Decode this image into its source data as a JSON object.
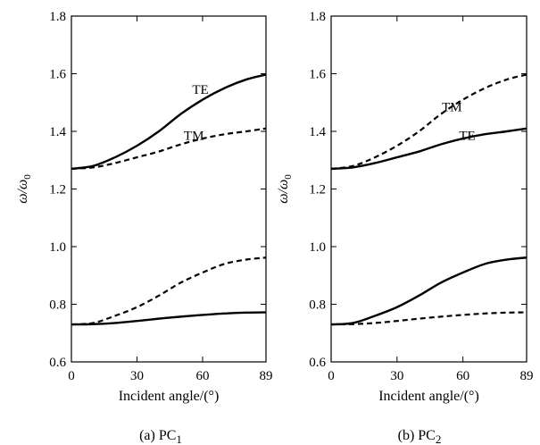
{
  "chart_data": [
    {
      "type": "line",
      "panel_caption": "(a) PC",
      "panel_caption_sub": "1",
      "xlabel": "Incident angle/(°)",
      "ylabel_main": "ω/ω",
      "ylabel_sub": "0",
      "xlim": [
        0,
        89
      ],
      "ylim": [
        0.6,
        1.8
      ],
      "xticks": [
        "0",
        "30",
        "60",
        "89"
      ],
      "yticks": [
        "0.6",
        "0.8",
        "1.0",
        "1.2",
        "1.4",
        "1.6",
        "1.8"
      ],
      "grid": false,
      "annotations": [
        {
          "text": "TE",
          "x": 59,
          "y": 1.53
        },
        {
          "text": "TM",
          "x": 56,
          "y": 1.37
        }
      ],
      "series": [
        {
          "style": "solid",
          "x": [
            0,
            10,
            20,
            30,
            40,
            50,
            60,
            70,
            80,
            89
          ],
          "y": [
            1.27,
            1.28,
            1.31,
            1.35,
            1.4,
            1.46,
            1.51,
            1.55,
            1.58,
            1.597
          ]
        },
        {
          "style": "dashed",
          "x": [
            0,
            10,
            20,
            30,
            40,
            50,
            60,
            70,
            80,
            89
          ],
          "y": [
            1.27,
            1.275,
            1.29,
            1.31,
            1.33,
            1.355,
            1.375,
            1.39,
            1.4,
            1.41
          ]
        },
        {
          "style": "dashed",
          "x": [
            0,
            10,
            20,
            30,
            40,
            50,
            60,
            70,
            80,
            89
          ],
          "y": [
            0.73,
            0.735,
            0.76,
            0.79,
            0.83,
            0.875,
            0.91,
            0.94,
            0.955,
            0.962
          ]
        },
        {
          "style": "solid",
          "x": [
            0,
            10,
            20,
            30,
            40,
            50,
            60,
            70,
            80,
            89
          ],
          "y": [
            0.73,
            0.731,
            0.735,
            0.742,
            0.75,
            0.757,
            0.763,
            0.768,
            0.771,
            0.772
          ]
        }
      ]
    },
    {
      "type": "line",
      "panel_caption": "(b) PC",
      "panel_caption_sub": "2",
      "xlabel": "Incident angle/(°)",
      "ylabel_main": "ω/ω",
      "ylabel_sub": "0",
      "xlim": [
        0,
        89
      ],
      "ylim": [
        0.6,
        1.8
      ],
      "xticks": [
        "0",
        "30",
        "60",
        "89"
      ],
      "yticks": [
        "0.6",
        "0.8",
        "1.0",
        "1.2",
        "1.4",
        "1.6",
        "1.8"
      ],
      "grid": false,
      "annotations": [
        {
          "text": "TM",
          "x": 55,
          "y": 1.47
        },
        {
          "text": "TE",
          "x": 62,
          "y": 1.37
        }
      ],
      "series": [
        {
          "style": "dashed",
          "x": [
            0,
            10,
            20,
            30,
            40,
            50,
            60,
            70,
            80,
            89
          ],
          "y": [
            1.27,
            1.28,
            1.31,
            1.35,
            1.4,
            1.46,
            1.51,
            1.55,
            1.58,
            1.597
          ]
        },
        {
          "style": "solid",
          "x": [
            0,
            10,
            20,
            30,
            40,
            50,
            60,
            70,
            80,
            89
          ],
          "y": [
            1.27,
            1.275,
            1.29,
            1.31,
            1.33,
            1.355,
            1.375,
            1.39,
            1.4,
            1.41
          ]
        },
        {
          "style": "solid",
          "x": [
            0,
            10,
            20,
            30,
            40,
            50,
            60,
            70,
            80,
            89
          ],
          "y": [
            0.73,
            0.735,
            0.76,
            0.79,
            0.83,
            0.875,
            0.91,
            0.94,
            0.955,
            0.962
          ]
        },
        {
          "style": "dashed",
          "x": [
            0,
            10,
            20,
            30,
            40,
            50,
            60,
            70,
            80,
            89
          ],
          "y": [
            0.73,
            0.731,
            0.735,
            0.742,
            0.75,
            0.757,
            0.763,
            0.768,
            0.771,
            0.772
          ]
        }
      ]
    }
  ]
}
